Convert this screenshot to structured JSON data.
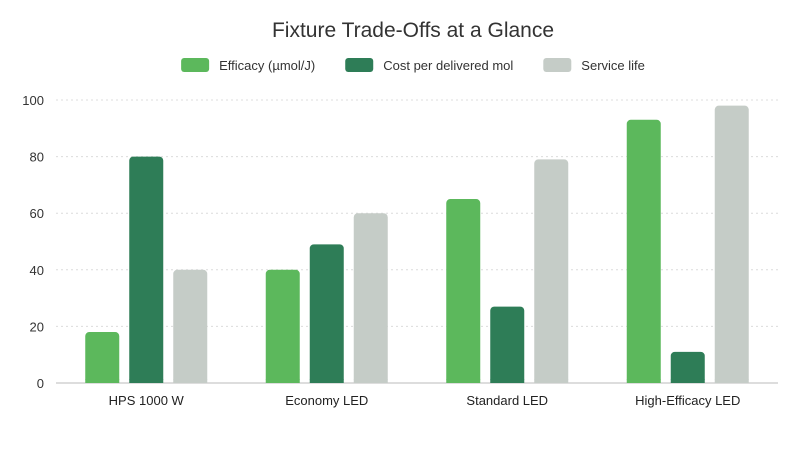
{
  "chart_data": {
    "type": "bar",
    "title": "Fixture Trade-Offs at a Glance",
    "xlabel": "",
    "ylabel": "",
    "ylim": [
      0,
      100
    ],
    "yticks": [
      0,
      20,
      40,
      60,
      80,
      100
    ],
    "grid": true,
    "legend_position": "top-center",
    "categories": [
      "HPS 1000 W",
      "Economy LED",
      "Standard LED",
      "High-Efficacy LED"
    ],
    "series": [
      {
        "name": "Efficacy (µmol/J)",
        "color": "#5cb85c",
        "values": [
          18,
          40,
          65,
          93
        ]
      },
      {
        "name": "Cost per delivered mol",
        "color": "#2e7d57",
        "values": [
          80,
          49,
          27,
          11
        ]
      },
      {
        "name": "Service life",
        "color": "#c5ccc7",
        "values": [
          40,
          60,
          79,
          98
        ]
      }
    ]
  }
}
